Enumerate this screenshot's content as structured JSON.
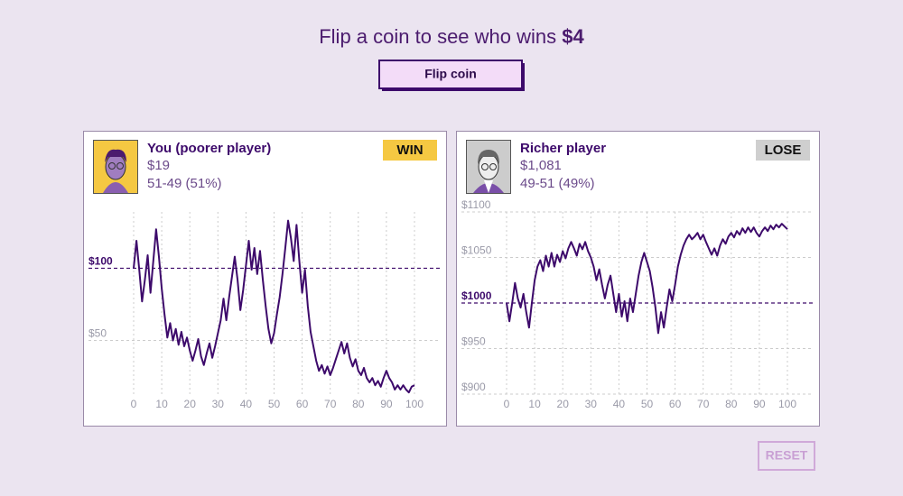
{
  "header": {
    "text": "Flip a coin to see who wins",
    "amount": "$4"
  },
  "flip_button": "Flip coin",
  "reset_button": "RESET",
  "players": [
    {
      "name": "You (poorer player)",
      "money": "$19",
      "record": "51-49 (51%)",
      "result": "WIN"
    },
    {
      "name": "Richer player",
      "money": "$1,081",
      "record": "49-51 (49%)",
      "result": "LOSE"
    }
  ],
  "chart_data": [
    {
      "type": "line",
      "x": [
        0,
        1,
        2,
        3,
        4,
        5,
        6,
        7,
        8,
        9,
        10,
        11,
        12,
        13,
        14,
        15,
        16,
        17,
        18,
        19,
        20,
        21,
        22,
        23,
        24,
        25,
        26,
        27,
        28,
        29,
        30,
        31,
        32,
        33,
        34,
        35,
        36,
        37,
        38,
        39,
        40,
        41,
        42,
        43,
        44,
        45,
        46,
        47,
        48,
        49,
        50,
        51,
        52,
        53,
        54,
        55,
        56,
        57,
        58,
        59,
        60,
        61,
        62,
        63,
        64,
        65,
        66,
        67,
        68,
        69,
        70,
        71,
        72,
        73,
        74,
        75,
        76,
        77,
        78,
        79,
        80,
        81,
        82,
        83,
        84,
        85,
        86,
        87,
        88,
        89,
        90,
        91,
        92,
        93,
        94,
        95,
        96,
        97,
        98,
        99,
        100
      ],
      "series": [
        {
          "color": "#3d0a6b",
          "values": [
            100,
            119,
            99,
            77,
            92,
            109,
            83,
            105,
            127,
            108,
            86,
            68,
            52,
            62,
            50,
            58,
            47,
            56,
            46,
            52,
            43,
            36,
            43,
            51,
            39,
            33,
            41,
            48,
            38,
            46,
            55,
            64,
            79,
            64,
            80,
            94,
            108,
            92,
            71,
            85,
            102,
            119,
            99,
            114,
            96,
            112,
            92,
            74,
            58,
            48,
            55,
            68,
            80,
            96,
            114,
            133,
            121,
            105,
            130,
            105,
            83,
            99,
            74,
            56,
            46,
            36,
            29,
            33,
            27,
            32,
            26,
            31,
            37,
            43,
            49,
            41,
            48,
            38,
            32,
            37,
            29,
            26,
            31,
            24,
            21,
            24,
            19,
            22,
            18,
            24,
            29,
            24,
            21,
            16,
            19,
            16,
            19,
            16,
            14,
            18,
            19
          ]
        }
      ],
      "xlim": [
        0,
        100
      ],
      "xticks": [
        0,
        10,
        20,
        30,
        40,
        50,
        60,
        70,
        80,
        90,
        100
      ],
      "ylim": [
        11,
        139
      ],
      "yticks": [
        {
          "value": 50,
          "label": "$50"
        },
        {
          "value": 100,
          "label": "$100"
        }
      ],
      "reference_line": 100,
      "grid": true
    },
    {
      "type": "line",
      "x": [
        0,
        1,
        2,
        3,
        4,
        5,
        6,
        7,
        8,
        9,
        10,
        11,
        12,
        13,
        14,
        15,
        16,
        17,
        18,
        19,
        20,
        21,
        22,
        23,
        24,
        25,
        26,
        27,
        28,
        29,
        30,
        31,
        32,
        33,
        34,
        35,
        36,
        37,
        38,
        39,
        40,
        41,
        42,
        43,
        44,
        45,
        46,
        47,
        48,
        49,
        50,
        51,
        52,
        53,
        54,
        55,
        56,
        57,
        58,
        59,
        60,
        61,
        62,
        63,
        64,
        65,
        66,
        67,
        68,
        69,
        70,
        71,
        72,
        73,
        74,
        75,
        76,
        77,
        78,
        79,
        80,
        81,
        82,
        83,
        84,
        85,
        86,
        87,
        88,
        89,
        90,
        91,
        92,
        93,
        94,
        95,
        96,
        97,
        98,
        99,
        100
      ],
      "series": [
        {
          "color": "#3d0a6b",
          "values": [
            1000,
            980,
            1000,
            1022,
            1005,
            995,
            1010,
            990,
            973,
            1000,
            1025,
            1040,
            1047,
            1035,
            1052,
            1040,
            1055,
            1040,
            1053,
            1045,
            1057,
            1049,
            1060,
            1067,
            1060,
            1052,
            1065,
            1059,
            1067,
            1057,
            1050,
            1040,
            1025,
            1037,
            1020,
            1005,
            1020,
            1030,
            1010,
            990,
            1010,
            985,
            1002,
            980,
            1005,
            990,
            1010,
            1030,
            1045,
            1055,
            1045,
            1035,
            1017,
            995,
            967,
            990,
            973,
            995,
            1015,
            1002,
            1020,
            1040,
            1053,
            1063,
            1070,
            1075,
            1070,
            1073,
            1077,
            1070,
            1075,
            1067,
            1060,
            1053,
            1060,
            1052,
            1063,
            1070,
            1065,
            1073,
            1077,
            1072,
            1079,
            1075,
            1082,
            1077,
            1083,
            1078,
            1083,
            1077,
            1073,
            1079,
            1083,
            1079,
            1085,
            1081,
            1086,
            1083,
            1087,
            1084,
            1081
          ]
        }
      ],
      "xlim": [
        0,
        100
      ],
      "xticks": [
        0,
        10,
        20,
        30,
        40,
        50,
        60,
        70,
        80,
        90,
        100
      ],
      "ylim": [
        900,
        1100
      ],
      "yticks": [
        {
          "value": 900,
          "label": "$900"
        },
        {
          "value": 950,
          "label": "$950"
        },
        {
          "value": 1000,
          "label": "$1000"
        },
        {
          "value": 1050,
          "label": "$1050"
        },
        {
          "value": 1100,
          "label": "$1100"
        }
      ],
      "reference_line": 1000,
      "grid": true
    }
  ]
}
